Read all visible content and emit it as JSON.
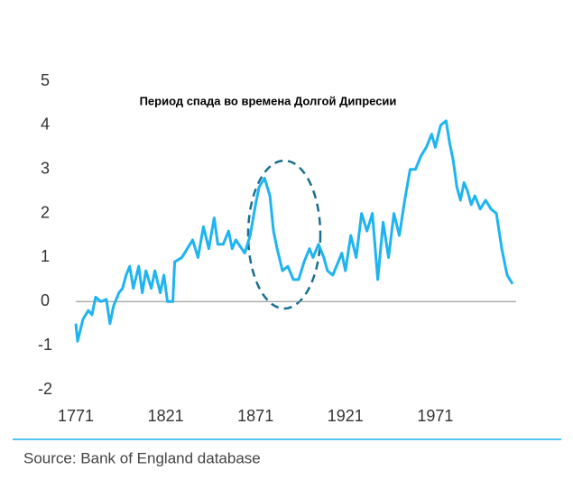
{
  "chart_data": {
    "type": "line",
    "annotation": "Период спада во времена Долгой Дипресии",
    "source": "Source: Bank of England database",
    "x": [
      1771,
      1772,
      1775,
      1778,
      1780,
      1782,
      1785,
      1788,
      1790,
      1792,
      1795,
      1797,
      1799,
      1801,
      1803,
      1806,
      1808,
      1810,
      1813,
      1815,
      1818,
      1820,
      1822,
      1825,
      1826,
      1830,
      1833,
      1836,
      1839,
      1842,
      1845,
      1848,
      1850,
      1853,
      1856,
      1858,
      1860,
      1865,
      1868,
      1871,
      1873,
      1876,
      1879,
      1881,
      1883,
      1886,
      1889,
      1892,
      1895,
      1898,
      1901,
      1903,
      1906,
      1909,
      1911,
      1914,
      1917,
      1919,
      1921,
      1924,
      1927,
      1930,
      1933,
      1936,
      1939,
      1942,
      1945,
      1948,
      1951,
      1954,
      1957,
      1960,
      1963,
      1966,
      1969,
      1971,
      1974,
      1977,
      1979,
      1981,
      1983,
      1985,
      1987,
      1989,
      1991,
      1993,
      1996,
      1999,
      2002,
      2005,
      2008,
      2011,
      2014
    ],
    "series": [
      {
        "color": "#1eb4f0",
        "values": [
          -0.5,
          -0.9,
          -0.4,
          -0.2,
          -0.3,
          0.1,
          0.0,
          0.05,
          -0.5,
          -0.1,
          0.2,
          0.3,
          0.6,
          0.8,
          0.3,
          0.8,
          0.2,
          0.7,
          0.3,
          0.7,
          0.2,
          0.6,
          0.0,
          0.0,
          0.9,
          1.0,
          1.2,
          1.4,
          1.0,
          1.7,
          1.2,
          1.9,
          1.3,
          1.3,
          1.6,
          1.2,
          1.4,
          1.1,
          1.5,
          2.2,
          2.6,
          2.8,
          2.4,
          1.6,
          1.2,
          0.7,
          0.8,
          0.5,
          0.5,
          0.9,
          1.2,
          1.0,
          1.3,
          1.0,
          0.7,
          0.6,
          0.9,
          1.1,
          0.7,
          1.5,
          1.0,
          2.0,
          1.6,
          2.0,
          0.5,
          1.8,
          1.0,
          2.0,
          1.5,
          2.3,
          3.0,
          3.0,
          3.3,
          3.5,
          3.8,
          3.5,
          4.0,
          4.1,
          3.6,
          3.2,
          2.6,
          2.3,
          2.7,
          2.5,
          2.2,
          2.4,
          2.1,
          2.3,
          2.1,
          2.0,
          1.2,
          0.6,
          0.4
        ]
      }
    ],
    "xlim": [
      1771,
      2016
    ],
    "xticks": [
      1771,
      1821,
      1871,
      1921,
      1971
    ],
    "ylim": [
      -2,
      5
    ],
    "yticks": [
      -2,
      -1,
      0,
      1,
      2,
      3,
      4,
      5
    ]
  }
}
